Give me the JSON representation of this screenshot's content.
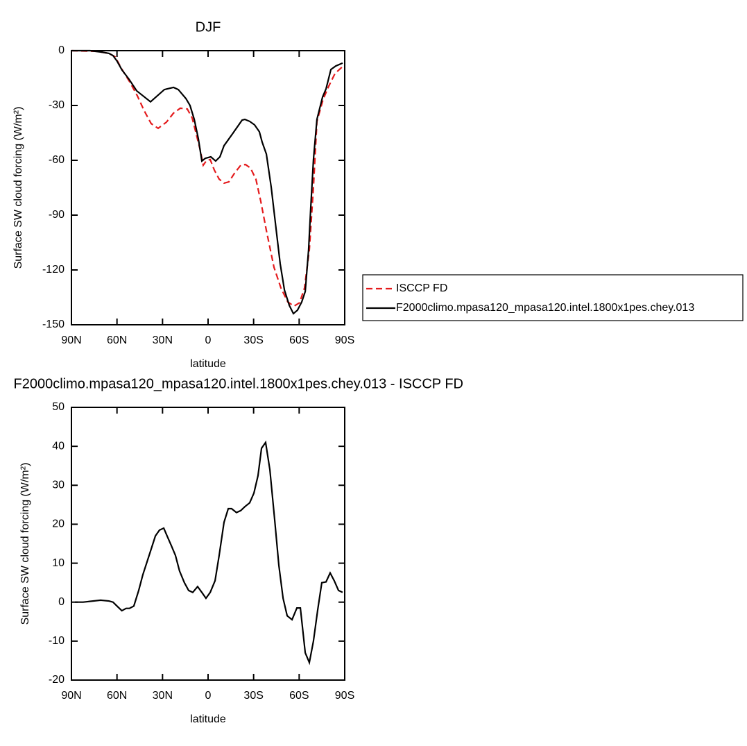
{
  "chart_data": [
    {
      "type": "line",
      "title": "DJF",
      "xlabel": "latitude",
      "ylabel": "Surface SW cloud forcing (W/m²)",
      "xlim": [
        90,
        -90
      ],
      "xticks": [
        {
          "value": 90,
          "label": "90N"
        },
        {
          "value": 60,
          "label": "60N"
        },
        {
          "value": 30,
          "label": "30N"
        },
        0,
        {
          "value": -30,
          "label": "30S"
        },
        {
          "value": -60,
          "label": "60S"
        },
        {
          "value": -90,
          "label": "90S"
        }
      ],
      "ylim": [
        -150,
        0
      ],
      "yticks": [
        -150,
        -120,
        -90,
        -60,
        -30,
        0
      ],
      "legend": "right",
      "series": [
        {
          "name": "ISCCP FD",
          "color": "#e41a1c",
          "linestyle": "dashed",
          "x": [
            90,
            73.1,
            65.3,
            61.2,
            56.7,
            51.6,
            46.6,
            42,
            37.5,
            32.9,
            27.4,
            22.8,
            18.3,
            13.7,
            10.5,
            7.8,
            5,
            3.2,
            0.9,
            -1.4,
            -4.1,
            -7.3,
            -10.5,
            -13.7,
            -17.3,
            -21.5,
            -24.6,
            -27.9,
            -31.5,
            -34.7,
            -38.4,
            -43.4,
            -48,
            -52.5,
            -56.6,
            -60.3,
            -63.5,
            -66.7,
            -69.4,
            -71.7,
            -75.8,
            -79.5,
            -83.6,
            -88.6
          ],
          "values": [
            0,
            -0.4,
            -1.5,
            -3.4,
            -10.3,
            -17.1,
            -24.7,
            -33,
            -39.9,
            -42.5,
            -39.1,
            -34.2,
            -31.5,
            -31.9,
            -36.8,
            -45.6,
            -55,
            -62.7,
            -60,
            -59.6,
            -65.3,
            -70.3,
            -72.5,
            -71.8,
            -67.2,
            -62.7,
            -62.3,
            -64.2,
            -70.3,
            -82.4,
            -98.4,
            -118.5,
            -129.9,
            -137.5,
            -139.8,
            -137.9,
            -129.9,
            -109,
            -74.8,
            -38.7,
            -26.6,
            -19.4,
            -12.5,
            -8.7
          ]
        },
        {
          "name": "F2000climo.mpasa120_mpasa120.intel.1800x1pes.chey.013",
          "color": "#000000",
          "linestyle": "solid",
          "x": [
            90,
            77.7,
            69.9,
            65.3,
            62.6,
            60,
            56.7,
            52.1,
            47,
            37.9,
            28.8,
            22.8,
            19.6,
            14.6,
            11.9,
            9.1,
            6.4,
            4.1,
            1.8,
            -1.8,
            -5,
            -7.8,
            -10.5,
            -16,
            -22.4,
            -24.2,
            -27.4,
            -30.6,
            -33.8,
            -35.6,
            -38.4,
            -41.6,
            -44.8,
            -47.5,
            -50.3,
            -53.5,
            -56.2,
            -58.9,
            -61.7,
            -64,
            -66.2,
            -67.6,
            -69.4,
            -71.7,
            -75.4,
            -77.7,
            -80.9,
            -84.1,
            -88.6
          ],
          "values": [
            0,
            0,
            -0.8,
            -1.5,
            -2.7,
            -5.7,
            -10.6,
            -15.6,
            -22,
            -28,
            -21.3,
            -20.1,
            -21.3,
            -26.2,
            -30,
            -37.6,
            -48.2,
            -60.4,
            -58.9,
            -58.1,
            -60.4,
            -58.1,
            -52,
            -45.6,
            -38,
            -37.6,
            -38.7,
            -40.6,
            -44.4,
            -50,
            -56.6,
            -74.8,
            -97.6,
            -116.6,
            -131,
            -139.4,
            -143.9,
            -142,
            -137.5,
            -131.8,
            -109,
            -86.2,
            -59.6,
            -37.6,
            -25.4,
            -20.9,
            -10.3,
            -8.4,
            -6.8
          ]
        }
      ]
    },
    {
      "type": "line",
      "title": "F2000climo.mpasa120_mpasa120.intel.1800x1pes.chey.013 - ISCCP FD",
      "xlabel": "latitude",
      "ylabel": "Surface SW cloud forcing (W/m²)",
      "xlim": [
        90,
        -90
      ],
      "xticks": [
        {
          "value": 90,
          "label": "90N"
        },
        {
          "value": 60,
          "label": "60N"
        },
        {
          "value": 30,
          "label": "30N"
        },
        0,
        {
          "value": -30,
          "label": "30S"
        },
        {
          "value": -60,
          "label": "60S"
        },
        {
          "value": -90,
          "label": "90S"
        }
      ],
      "ylim": [
        -20,
        50
      ],
      "yticks": [
        -20,
        -10,
        0,
        10,
        20,
        30,
        40,
        50
      ],
      "series": [
        {
          "color": "#000000",
          "linestyle": "solid",
          "x": [
            87.7,
            82.3,
            70.8,
            65.3,
            62.6,
            60,
            56.8,
            54,
            51.8,
            48.9,
            45.7,
            43,
            38,
            34.7,
            32,
            29.2,
            27,
            24.2,
            21.5,
            18.8,
            15.6,
            12.8,
            10.1,
            6.9,
            4.1,
            1.4,
            -1.4,
            -4.6,
            -7.3,
            -10.5,
            -13.3,
            -15.5,
            -18.7,
            -21.5,
            -24.2,
            -27.4,
            -30.2,
            -32.9,
            -35.2,
            -37.9,
            -40.7,
            -43.9,
            -46.6,
            -49.4,
            -52.1,
            -55.3,
            -58.5,
            -60.8,
            -64,
            -66.7,
            -69.4,
            -72.2,
            -74.9,
            -77.7,
            -80.4,
            -83.1,
            -85.9,
            -88.6
          ],
          "values": [
            0,
            0,
            0.5,
            0.3,
            0,
            -1,
            -2.2,
            -1.6,
            -1.6,
            -1,
            3,
            7,
            13,
            17,
            18.5,
            19,
            17,
            14.5,
            12,
            8,
            5,
            3,
            2.5,
            4,
            2.5,
            1,
            2.5,
            5.5,
            12,
            20.5,
            24,
            24,
            23,
            23.5,
            24.5,
            25.5,
            28,
            32.5,
            39.5,
            41,
            34,
            21,
            9.5,
            1,
            -3.5,
            -4.5,
            -1.5,
            -1.5,
            -13,
            -15.5,
            -10,
            -2,
            5,
            5.2,
            7.5,
            5.5,
            3,
            2.5
          ]
        }
      ]
    }
  ]
}
